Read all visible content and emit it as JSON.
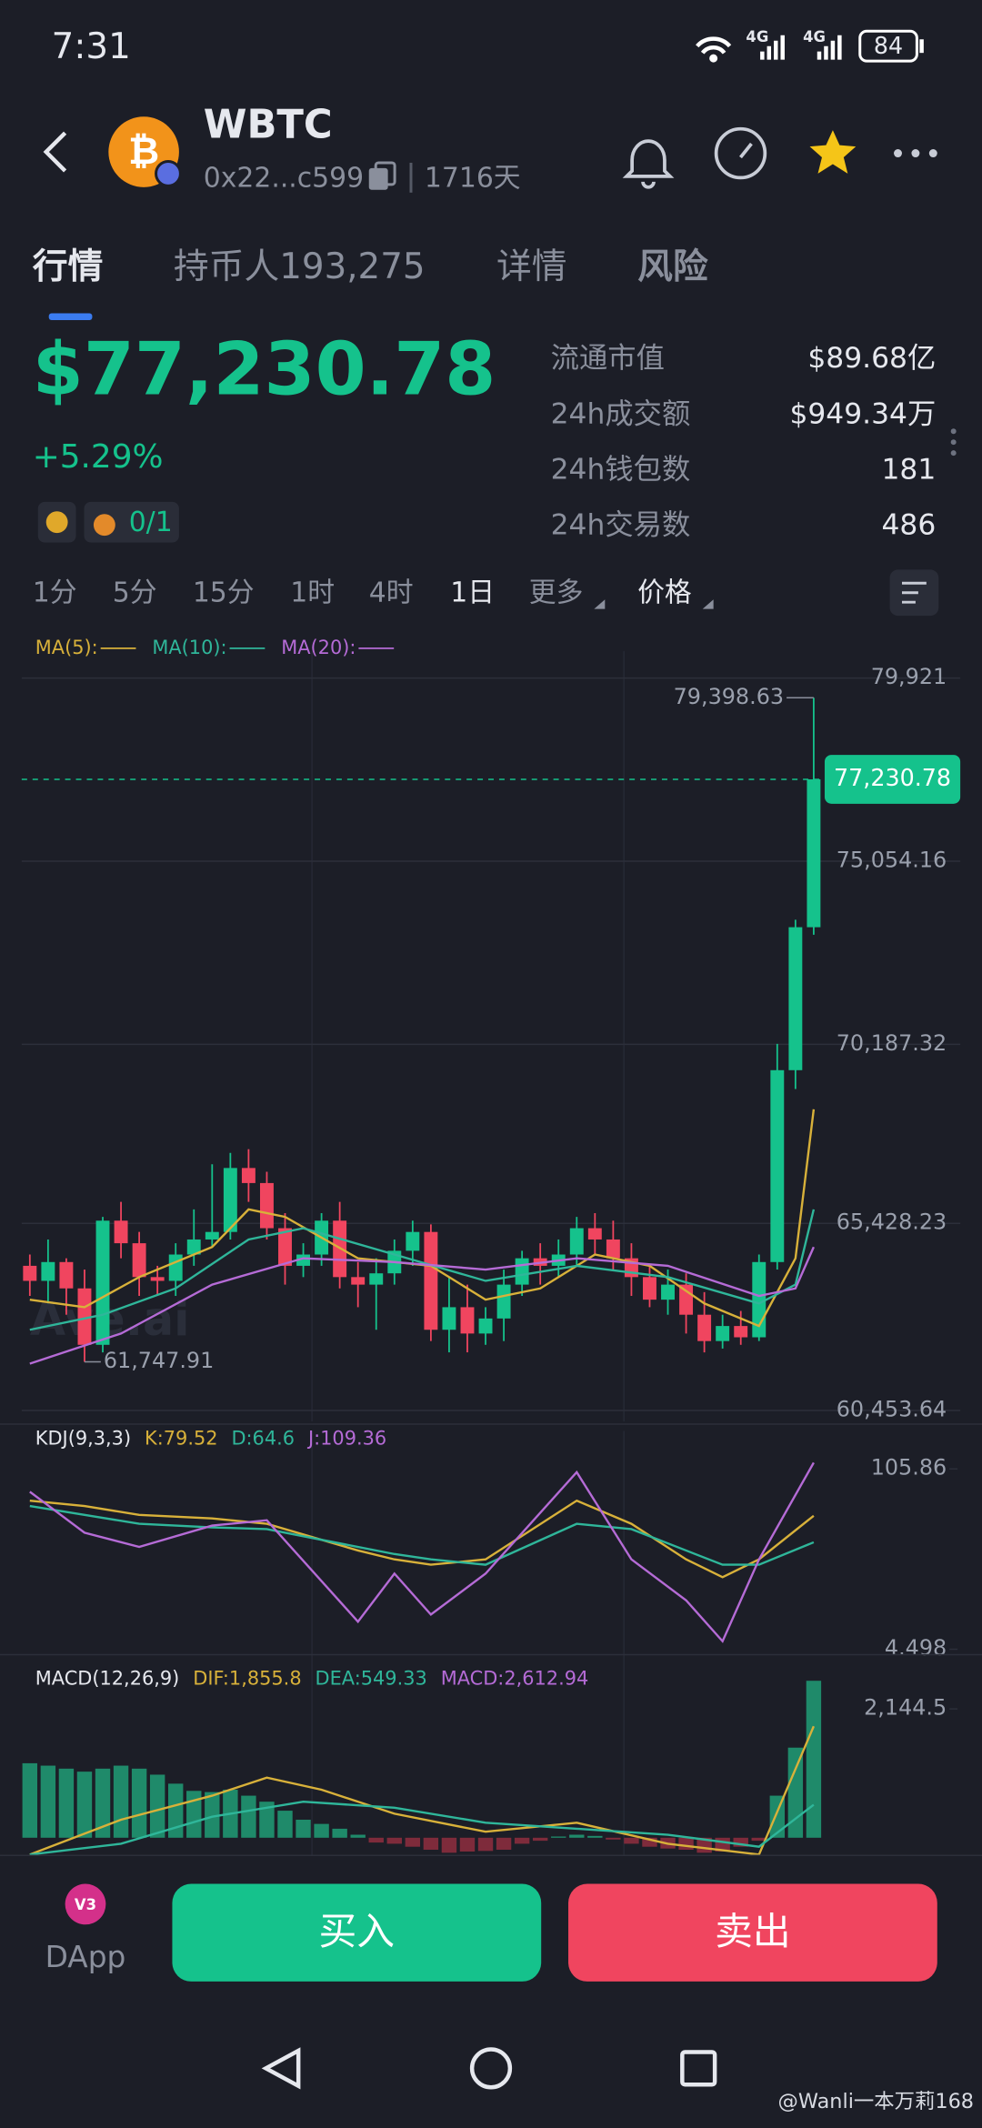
{
  "status_bar": {
    "time": "7:31",
    "network": "4G",
    "network2": "4G",
    "battery": "84"
  },
  "header": {
    "title": "WBTC",
    "address": "0x22...c599",
    "age": "1716天"
  },
  "tabs": [
    "行情",
    "持币人193,275",
    "详情",
    "风险"
  ],
  "price": {
    "value": "$77,230.78",
    "change": "+5.29%",
    "counter": "0/1"
  },
  "stats": [
    {
      "label": "流通市值",
      "value": "$89.68亿"
    },
    {
      "label": "24h成交额",
      "value": "$949.34万"
    },
    {
      "label": "24h钱包数",
      "value": "181"
    },
    {
      "label": "24h交易数",
      "value": "486"
    }
  ],
  "intervals": [
    "1分",
    "5分",
    "15分",
    "1时",
    "4时",
    "1日",
    "更多",
    "价格"
  ],
  "watermark": "Ave.ai",
  "chart_data": [
    {
      "type": "candlestick",
      "colors": {
        "up": "#15c28c",
        "down": "#f0455f"
      },
      "open": [
        64300,
        63900,
        64400,
        63700,
        62200,
        65500,
        64900,
        64000,
        63900,
        64600,
        65000,
        65200,
        66900,
        66500,
        65300,
        64300,
        64600,
        65500,
        64000,
        63800,
        64100,
        64700,
        65200,
        62600,
        63200,
        62500,
        62900,
        63800,
        64500,
        64300,
        64600,
        65300,
        65000,
        64500,
        64000,
        63400,
        63800,
        63000,
        62300,
        62700,
        62400,
        64400,
        69500,
        73300
      ],
      "high": [
        64600,
        65000,
        64500,
        64200,
        65600,
        66000,
        65200,
        64300,
        64900,
        65800,
        67000,
        67300,
        67400,
        66800,
        65700,
        64900,
        65700,
        66000,
        64400,
        64500,
        65000,
        65500,
        65400,
        64000,
        63800,
        63200,
        64200,
        64700,
        64900,
        65000,
        65600,
        65700,
        65500,
        64900,
        64300,
        64200,
        64100,
        63600,
        63000,
        63100,
        64600,
        70200,
        73500,
        79398.63
      ],
      "low": [
        63500,
        63300,
        63000,
        61747.91,
        62000,
        64500,
        63500,
        63500,
        63500,
        64300,
        64800,
        65000,
        66000,
        65000,
        63800,
        64000,
        64300,
        63700,
        63200,
        62600,
        63800,
        64300,
        62300,
        62000,
        62000,
        62200,
        62300,
        63500,
        63800,
        64000,
        64300,
        64600,
        64200,
        63500,
        63200,
        63000,
        62500,
        62000,
        62100,
        62200,
        62300,
        64200,
        69000,
        73100
      ],
      "close": [
        63900,
        64400,
        63700,
        62200,
        65500,
        64900,
        64000,
        63900,
        64600,
        65000,
        65200,
        66900,
        66500,
        65300,
        64300,
        64600,
        65500,
        64000,
        63800,
        64100,
        64700,
        65200,
        62600,
        63200,
        62500,
        62900,
        63800,
        64500,
        64300,
        64600,
        65300,
        65000,
        64500,
        64000,
        63400,
        63800,
        63000,
        62300,
        62700,
        62400,
        64400,
        69500,
        73300,
        77230.78
      ],
      "series": [
        {
          "name": "MA(5):",
          "color": "#d8b13a",
          "x": [
            0,
            3,
            6,
            10,
            12,
            14,
            18,
            22,
            25,
            28,
            31,
            34,
            37,
            40,
            42,
            43
          ],
          "values": [
            63400,
            63200,
            64000,
            64800,
            65800,
            65600,
            64500,
            64300,
            63400,
            63700,
            64600,
            64300,
            63300,
            62700,
            64500,
            68460
          ]
        },
        {
          "name": "MA(10):",
          "color": "#2fb69a",
          "x": [
            0,
            4,
            8,
            12,
            15,
            20,
            25,
            30,
            35,
            40,
            42,
            43
          ],
          "values": [
            62600,
            63000,
            63700,
            65000,
            65300,
            64600,
            63900,
            64300,
            64000,
            63300,
            63800,
            65800
          ]
        },
        {
          "name": "MA(20):",
          "color": "#b56bd6",
          "x": [
            0,
            5,
            10,
            15,
            20,
            25,
            30,
            35,
            40,
            42,
            43
          ],
          "values": [
            61700,
            62500,
            63800,
            64500,
            64400,
            64200,
            64500,
            64300,
            63500,
            63700,
            64800
          ]
        }
      ],
      "ylim": [
        60165,
        80281
      ],
      "yticks": [
        {
          "value": 60453.64,
          "label": "60,453.64"
        },
        {
          "value": 65428.23,
          "label": "65,428.23"
        },
        {
          "value": 70187.32,
          "label": "70,187.32"
        },
        {
          "value": 75054.16,
          "label": "75,054.16"
        },
        {
          "value": 79921,
          "label": "79,921"
        }
      ],
      "last_price": {
        "value": 77230.78,
        "label": "77,230.78"
      },
      "annotations": [
        {
          "value": 79398.63,
          "label": "79,398.63"
        },
        {
          "value": 61747.91,
          "label": "61,747.91"
        }
      ]
    },
    {
      "type": "line",
      "title": "KDJ(9,3,3)",
      "series": [
        {
          "name": "K:79.52",
          "color": "#d8b13a",
          "x": [
            0,
            3,
            6,
            10,
            13,
            18,
            20,
            22,
            25,
            30,
            33,
            36,
            38,
            40,
            43
          ],
          "values": [
            88,
            85,
            80,
            78,
            75,
            60,
            55,
            52,
            55,
            88,
            75,
            55,
            45,
            55,
            79.52
          ]
        },
        {
          "name": "D:64.6",
          "color": "#2fb69a",
          "x": [
            0,
            3,
            6,
            10,
            13,
            18,
            20,
            22,
            25,
            30,
            33,
            36,
            38,
            40,
            43
          ],
          "values": [
            85,
            80,
            75,
            73,
            72,
            62,
            58,
            55,
            52,
            75,
            72,
            60,
            52,
            52,
            64.6
          ]
        },
        {
          "name": "J:109.36",
          "color": "#b56bd6",
          "x": [
            0,
            3,
            6,
            10,
            13,
            18,
            20,
            22,
            25,
            30,
            33,
            36,
            38,
            40,
            43
          ],
          "values": [
            93,
            70,
            62,
            74,
            77,
            20,
            47,
            24,
            47,
            104,
            55,
            32,
            9,
            55,
            109.36
          ]
        }
      ],
      "ylim": [
        -2.36,
        119.6
      ],
      "yticks": [
        4.498,
        105.86
      ]
    },
    {
      "type": "macd",
      "title": "MACD(12,26,9)",
      "colors": {
        "up": "#1f8a6a",
        "down": "#7e2b3b"
      },
      "series": [
        {
          "name": "DIF:1,855.8",
          "color": "#d8b13a",
          "style": "line",
          "x": [
            0,
            5,
            10,
            13,
            16,
            20,
            25,
            30,
            35,
            40,
            43
          ],
          "values": [
            -280,
            300,
            700,
            1000,
            800,
            400,
            100,
            250,
            -100,
            -280,
            1855.8
          ]
        },
        {
          "name": "DEA:549.33",
          "color": "#2fb69a",
          "style": "line",
          "x": [
            0,
            5,
            10,
            15,
            20,
            25,
            30,
            35,
            40,
            43
          ],
          "values": [
            -280,
            -100,
            350,
            600,
            500,
            250,
            150,
            50,
            -150,
            549.33
          ]
        },
        {
          "name": "MACD:2,612.94",
          "color": "#b56bd6",
          "style": "bar",
          "values": [
            1240,
            1200,
            1150,
            1100,
            1150,
            1200,
            1150,
            1050,
            900,
            780,
            760,
            800,
            700,
            600,
            450,
            300,
            230,
            150,
            50,
            -80,
            -100,
            -150,
            -200,
            -250,
            -230,
            -220,
            -200,
            -100,
            -50,
            20,
            50,
            30,
            -30,
            -100,
            -150,
            -180,
            -200,
            -250,
            -230,
            -150,
            -50,
            700,
            1500,
            2612.94
          ]
        }
      ],
      "ylim": [
        -294,
        2709
      ],
      "yticks": [
        {
          "value": 2144.5,
          "label": "2,144.5"
        }
      ]
    }
  ],
  "dapp": {
    "badge": "V3",
    "label": "DApp"
  },
  "buttons": {
    "buy": "买入",
    "sell": "卖出"
  },
  "credit": "@Wanli一本万莉168"
}
